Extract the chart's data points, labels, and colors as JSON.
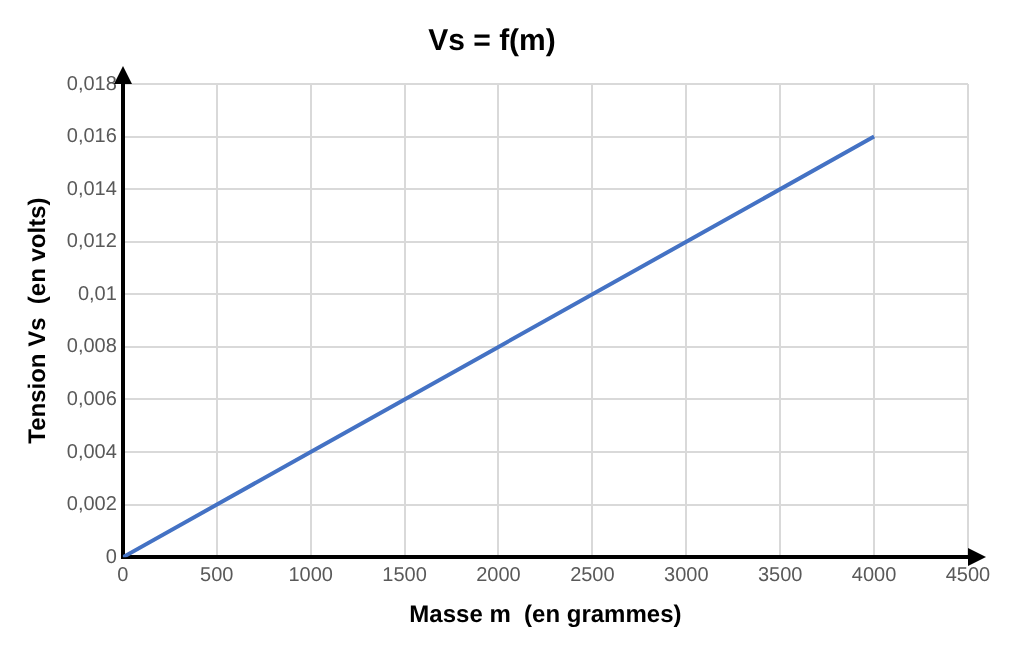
{
  "chart_data": {
    "type": "line",
    "title": "Vs = f(m)",
    "xlabel": "Masse m  (en grammes)",
    "ylabel": "Tension Vs  (en volts)",
    "x": [
      0,
      1000,
      2000,
      3000,
      4000
    ],
    "series": [
      {
        "color": "#4472c4",
        "values": [
          0,
          0.004,
          0.008,
          0.012,
          0.016
        ]
      }
    ],
    "xlim": [
      0,
      4500
    ],
    "xticks": [
      0,
      500,
      1000,
      1500,
      2000,
      2500,
      3000,
      3500,
      4000,
      4500
    ],
    "ylim": [
      0,
      0.018
    ],
    "yticks": [
      0,
      {
        "value": 0.002,
        "label": "0,002"
      },
      {
        "value": 0.004,
        "label": "0,004"
      },
      {
        "value": 0.006,
        "label": "0,006"
      },
      {
        "value": 0.008,
        "label": "0,008"
      },
      {
        "value": 0.01,
        "label": "0,01"
      },
      {
        "value": 0.012,
        "label": "0,012"
      },
      {
        "value": 0.014,
        "label": "0,014"
      },
      {
        "value": 0.016,
        "label": "0,016"
      },
      {
        "value": 0.018,
        "label": "0,018"
      }
    ],
    "grid": true,
    "legend": false,
    "marker": "none",
    "line_style": "solid"
  }
}
